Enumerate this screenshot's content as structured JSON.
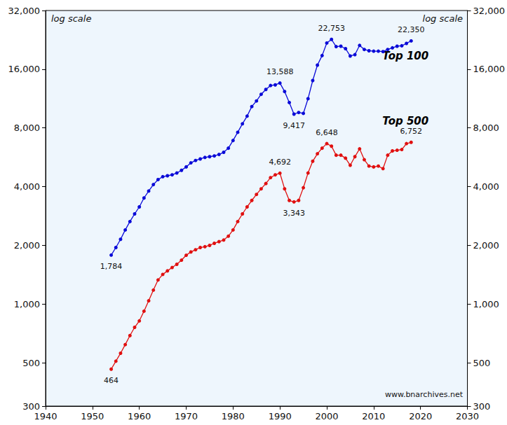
{
  "chart_data": {
    "type": "line",
    "x": [
      1954,
      1955,
      1956,
      1957,
      1958,
      1959,
      1960,
      1961,
      1962,
      1963,
      1964,
      1965,
      1966,
      1967,
      1968,
      1969,
      1970,
      1971,
      1972,
      1973,
      1974,
      1975,
      1976,
      1977,
      1978,
      1979,
      1980,
      1981,
      1982,
      1983,
      1984,
      1985,
      1986,
      1987,
      1988,
      1989,
      1990,
      1991,
      1992,
      1993,
      1994,
      1995,
      1996,
      1997,
      1998,
      1999,
      2000,
      2001,
      2002,
      2003,
      2004,
      2005,
      2006,
      2007,
      2008,
      2009,
      2010,
      2011,
      2012,
      2013,
      2014,
      2015,
      2016,
      2017,
      2018
    ],
    "series": [
      {
        "name": "Top 100",
        "color": "#0a0ad8",
        "values": [
          1784,
          1950,
          2150,
          2400,
          2650,
          2900,
          3150,
          3500,
          3800,
          4100,
          4350,
          4500,
          4550,
          4600,
          4700,
          4850,
          5050,
          5300,
          5450,
          5550,
          5650,
          5700,
          5750,
          5850,
          6000,
          6300,
          6900,
          7600,
          8400,
          9200,
          10300,
          11000,
          11900,
          12600,
          13200,
          13300,
          13588,
          12300,
          10800,
          9417,
          9600,
          9500,
          11300,
          14000,
          16800,
          18800,
          21800,
          22753,
          20900,
          21000,
          20400,
          18700,
          19000,
          21200,
          20200,
          19900,
          19800,
          19800,
          19700,
          20200,
          20600,
          21000,
          21100,
          21700,
          22350
        ]
      },
      {
        "name": "Top 500",
        "color": "#e01010",
        "values": [
          464,
          510,
          560,
          620,
          690,
          760,
          820,
          920,
          1040,
          1180,
          1330,
          1420,
          1480,
          1540,
          1600,
          1680,
          1780,
          1850,
          1900,
          1950,
          1970,
          2000,
          2050,
          2090,
          2130,
          2230,
          2400,
          2650,
          2900,
          3150,
          3400,
          3650,
          3900,
          4150,
          4450,
          4600,
          4692,
          3900,
          3400,
          3343,
          3400,
          3950,
          4700,
          5400,
          5900,
          6300,
          6648,
          6450,
          5800,
          5800,
          5600,
          5150,
          5700,
          6250,
          5500,
          5100,
          5050,
          5100,
          4950,
          5800,
          6100,
          6150,
          6200,
          6650,
          6752
        ]
      }
    ],
    "xlim": [
      1940,
      2030
    ],
    "xticks": [
      1940,
      1950,
      1960,
      1970,
      1980,
      1990,
      2000,
      2010,
      2020,
      2030
    ],
    "ylim": [
      300,
      32000
    ],
    "yticks": [
      300,
      500,
      {
        "value": 1000,
        "label": "1,000"
      },
      {
        "value": 2000,
        "label": "2,000"
      },
      {
        "value": 4000,
        "label": "4,000"
      },
      {
        "value": 8000,
        "label": "8,000"
      },
      {
        "value": 16000,
        "label": "16,000"
      },
      {
        "value": 32000,
        "label": "32,000"
      }
    ],
    "y2lim": [
      300,
      32000
    ],
    "y2ticks": [
      300,
      500,
      {
        "value": 1000,
        "label": "1,000"
      },
      {
        "value": 2000,
        "label": "2,000"
      },
      {
        "value": 4000,
        "label": "4,000"
      },
      {
        "value": 8000,
        "label": "8,000"
      },
      {
        "value": 16000,
        "label": "16,000"
      },
      {
        "value": 32000,
        "label": "32,000"
      }
    ],
    "log": "y",
    "grid": false,
    "marker": "circle",
    "y_axis_label": "log scale",
    "y2_axis_label": "log scale",
    "source": "www.bnarchives.net",
    "annotations": [
      {
        "series": "Top 100",
        "x": 1954,
        "text": "1,784"
      },
      {
        "series": "Top 100",
        "x": 1990,
        "text": "13,588"
      },
      {
        "series": "Top 100",
        "x": 1993,
        "text": "9,417"
      },
      {
        "series": "Top 100",
        "x": 2001,
        "text": "22,753"
      },
      {
        "series": "Top 100",
        "x": 2018,
        "text": "22,350"
      },
      {
        "series": "Top 500",
        "x": 1954,
        "text": "464"
      },
      {
        "series": "Top 500",
        "x": 1990,
        "text": "4,692"
      },
      {
        "series": "Top 500",
        "x": 1993,
        "text": "3,343"
      },
      {
        "series": "Top 500",
        "x": 2000,
        "text": "6,648"
      },
      {
        "series": "Top 500",
        "x": 2018,
        "text": "6,752"
      }
    ]
  }
}
